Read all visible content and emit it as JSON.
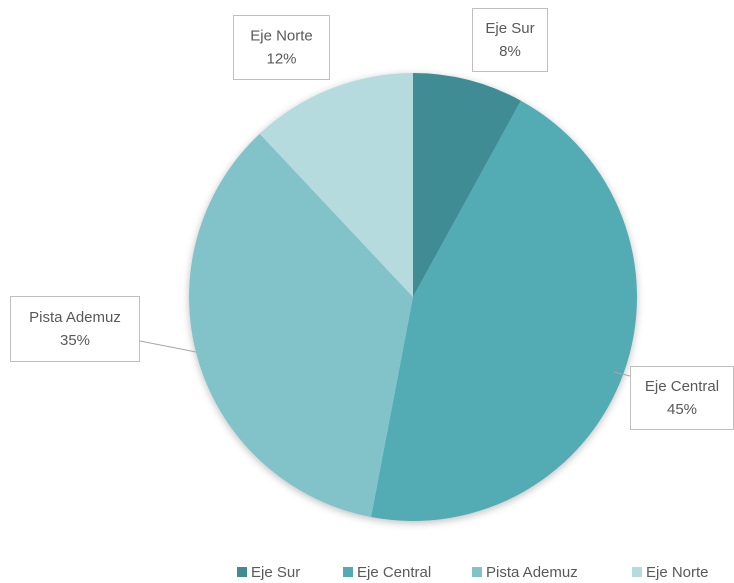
{
  "chart_data": {
    "type": "pie",
    "categories": [
      "Eje Sur",
      "Eje Central",
      "Pista Ademuz",
      "Eje Norte"
    ],
    "values": [
      8,
      45,
      35,
      12
    ],
    "value_labels": [
      "8%",
      "45%",
      "35%",
      "12%"
    ],
    "colors": [
      "#3f8c94",
      "#52abb3",
      "#82c3c9",
      "#b5dbde"
    ],
    "legend": "bottom"
  }
}
